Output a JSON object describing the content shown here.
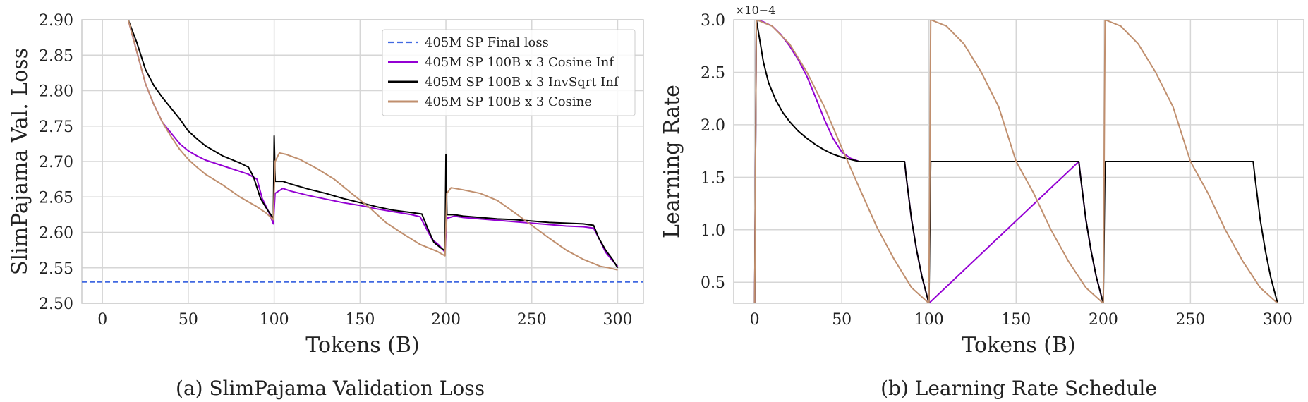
{
  "chart_data": [
    {
      "type": "line",
      "caption": "(a) SlimPajama Validation Loss",
      "xlabel": "Tokens (B)",
      "ylabel": "SlimPajama Val. Loss",
      "xlim": [
        -12,
        315
      ],
      "ylim": [
        2.5,
        2.9
      ],
      "xticks": [
        0,
        50,
        100,
        150,
        200,
        250,
        300
      ],
      "yticks": [
        2.5,
        2.55,
        2.6,
        2.65,
        2.7,
        2.75,
        2.8,
        2.85,
        2.9
      ],
      "grid": true,
      "legend_position": "top-right",
      "reference_lines": [
        {
          "name": "405M SP  Final loss",
          "y": 2.53,
          "style": "dashed",
          "color": "#4169e1"
        }
      ],
      "series": [
        {
          "name": "405M SP 100B x 3 Cosine Inf",
          "color": "#9400d3",
          "points": [
            [
              15,
              2.9
            ],
            [
              20,
              2.855
            ],
            [
              25,
              2.81
            ],
            [
              30,
              2.78
            ],
            [
              35,
              2.755
            ],
            [
              40,
              2.74
            ],
            [
              45,
              2.725
            ],
            [
              50,
              2.715
            ],
            [
              55,
              2.708
            ],
            [
              60,
              2.702
            ],
            [
              70,
              2.694
            ],
            [
              80,
              2.686
            ],
            [
              85,
              2.682
            ],
            [
              90,
              2.675
            ],
            [
              93,
              2.648
            ],
            [
              97,
              2.628
            ],
            [
              99.5,
              2.612
            ],
            [
              100.5,
              2.655
            ],
            [
              105,
              2.662
            ],
            [
              110,
              2.658
            ],
            [
              120,
              2.652
            ],
            [
              130,
              2.647
            ],
            [
              140,
              2.642
            ],
            [
              150,
              2.638
            ],
            [
              160,
              2.633
            ],
            [
              170,
              2.629
            ],
            [
              180,
              2.625
            ],
            [
              185,
              2.622
            ],
            [
              188,
              2.608
            ],
            [
              192,
              2.59
            ],
            [
              196,
              2.582
            ],
            [
              199.5,
              2.572
            ],
            [
              200.5,
              2.62
            ],
            [
              205,
              2.623
            ],
            [
              210,
              2.621
            ],
            [
              220,
              2.619
            ],
            [
              230,
              2.617
            ],
            [
              240,
              2.615
            ],
            [
              250,
              2.613
            ],
            [
              260,
              2.611
            ],
            [
              270,
              2.609
            ],
            [
              280,
              2.608
            ],
            [
              286,
              2.606
            ],
            [
              289,
              2.592
            ],
            [
              293,
              2.572
            ],
            [
              297,
              2.56
            ],
            [
              300,
              2.552
            ]
          ]
        },
        {
          "name": "405M SP 100B x 3 InvSqrt Inf",
          "color": "#000000",
          "points": [
            [
              15,
              2.9
            ],
            [
              20,
              2.868
            ],
            [
              25,
              2.83
            ],
            [
              30,
              2.807
            ],
            [
              35,
              2.79
            ],
            [
              40,
              2.775
            ],
            [
              45,
              2.76
            ],
            [
              50,
              2.743
            ],
            [
              55,
              2.732
            ],
            [
              60,
              2.722
            ],
            [
              65,
              2.715
            ],
            [
              70,
              2.708
            ],
            [
              80,
              2.698
            ],
            [
              85,
              2.692
            ],
            [
              88,
              2.678
            ],
            [
              92,
              2.648
            ],
            [
              96,
              2.632
            ],
            [
              99.5,
              2.62
            ],
            [
              100,
              2.736
            ],
            [
              100.6,
              2.672
            ],
            [
              105,
              2.672
            ],
            [
              110,
              2.668
            ],
            [
              120,
              2.661
            ],
            [
              130,
              2.655
            ],
            [
              140,
              2.648
            ],
            [
              150,
              2.642
            ],
            [
              160,
              2.636
            ],
            [
              170,
              2.631
            ],
            [
              180,
              2.628
            ],
            [
              186,
              2.626
            ],
            [
              189,
              2.608
            ],
            [
              193,
              2.586
            ],
            [
              197,
              2.578
            ],
            [
              199.5,
              2.574
            ],
            [
              200,
              2.71
            ],
            [
              200.6,
              2.625
            ],
            [
              205,
              2.625
            ],
            [
              210,
              2.623
            ],
            [
              220,
              2.621
            ],
            [
              230,
              2.619
            ],
            [
              240,
              2.618
            ],
            [
              250,
              2.616
            ],
            [
              260,
              2.614
            ],
            [
              270,
              2.613
            ],
            [
              280,
              2.612
            ],
            [
              286,
              2.61
            ],
            [
              289,
              2.592
            ],
            [
              293,
              2.575
            ],
            [
              297,
              2.562
            ],
            [
              300,
              2.55
            ]
          ]
        },
        {
          "name": "405M SP 100B x 3 Cosine",
          "color": "#c08f6e",
          "points": [
            [
              15,
              2.9
            ],
            [
              20,
              2.855
            ],
            [
              25,
              2.81
            ],
            [
              30,
              2.78
            ],
            [
              35,
              2.755
            ],
            [
              40,
              2.735
            ],
            [
              45,
              2.717
            ],
            [
              50,
              2.703
            ],
            [
              55,
              2.692
            ],
            [
              60,
              2.682
            ],
            [
              70,
              2.667
            ],
            [
              80,
              2.65
            ],
            [
              90,
              2.636
            ],
            [
              95,
              2.628
            ],
            [
              99.5,
              2.618
            ],
            [
              100.5,
              2.7
            ],
            [
              103,
              2.712
            ],
            [
              107,
              2.71
            ],
            [
              115,
              2.703
            ],
            [
              125,
              2.69
            ],
            [
              135,
              2.675
            ],
            [
              145,
              2.655
            ],
            [
              155,
              2.636
            ],
            [
              165,
              2.614
            ],
            [
              175,
              2.598
            ],
            [
              185,
              2.583
            ],
            [
              195,
              2.573
            ],
            [
              199.5,
              2.567
            ],
            [
              200.5,
              2.655
            ],
            [
              203,
              2.663
            ],
            [
              210,
              2.66
            ],
            [
              220,
              2.655
            ],
            [
              230,
              2.645
            ],
            [
              240,
              2.628
            ],
            [
              250,
              2.61
            ],
            [
              260,
              2.592
            ],
            [
              270,
              2.575
            ],
            [
              280,
              2.562
            ],
            [
              290,
              2.552
            ],
            [
              295,
              2.55
            ],
            [
              300,
              2.547
            ]
          ]
        }
      ]
    },
    {
      "type": "line",
      "caption": "(b) Learning Rate Schedule",
      "xlabel": "Tokens (B)",
      "ylabel": "Learning Rate",
      "scale_note": "×10−4",
      "xlim": [
        -12,
        315
      ],
      "ylim": [
        0.3,
        3.0
      ],
      "xticks": [
        0,
        50,
        100,
        150,
        200,
        250,
        300
      ],
      "yticks": [
        0.5,
        1.0,
        1.5,
        2.0,
        2.5,
        3.0
      ],
      "grid": true,
      "series": [
        {
          "name": "405M SP 100B x 3 Cosine Inf",
          "color": "#9400d3",
          "points": [
            [
              0,
              0.3
            ],
            [
              1,
              3.0
            ],
            [
              5,
              2.98
            ],
            [
              10,
              2.94
            ],
            [
              15,
              2.86
            ],
            [
              20,
              2.75
            ],
            [
              25,
              2.62
            ],
            [
              30,
              2.46
            ],
            [
              35,
              2.26
            ],
            [
              40,
              2.05
            ],
            [
              45,
              1.87
            ],
            [
              50,
              1.74
            ],
            [
              55,
              1.68
            ],
            [
              60,
              1.65
            ],
            [
              86,
              1.65
            ],
            [
              87,
              1.5
            ],
            [
              90,
              1.1
            ],
            [
              93,
              0.8
            ],
            [
              96,
              0.55
            ],
            [
              100,
              0.3
            ],
            [
              186,
              1.65
            ],
            [
              187,
              1.5
            ],
            [
              190,
              1.1
            ],
            [
              193,
              0.8
            ],
            [
              196,
              0.55
            ],
            [
              200,
              0.3
            ]
          ]
        },
        {
          "name": "405M SP 100B x 3 InvSqrt Inf",
          "color": "#000000",
          "points": [
            [
              0,
              0.3
            ],
            [
              1,
              3.0
            ],
            [
              3,
              2.8
            ],
            [
              5,
              2.6
            ],
            [
              8,
              2.4
            ],
            [
              12,
              2.24
            ],
            [
              16,
              2.12
            ],
            [
              20,
              2.03
            ],
            [
              25,
              1.94
            ],
            [
              30,
              1.87
            ],
            [
              35,
              1.81
            ],
            [
              40,
              1.76
            ],
            [
              45,
              1.72
            ],
            [
              50,
              1.69
            ],
            [
              55,
              1.67
            ],
            [
              60,
              1.65
            ],
            [
              86,
              1.65
            ],
            [
              87,
              1.5
            ],
            [
              90,
              1.1
            ],
            [
              93,
              0.8
            ],
            [
              96,
              0.55
            ],
            [
              100,
              0.3
            ],
            [
              101,
              1.65
            ],
            [
              186,
              1.65
            ],
            [
              187,
              1.5
            ],
            [
              190,
              1.1
            ],
            [
              193,
              0.8
            ],
            [
              196,
              0.55
            ],
            [
              200,
              0.3
            ],
            [
              201,
              1.65
            ],
            [
              286,
              1.65
            ],
            [
              287,
              1.5
            ],
            [
              290,
              1.1
            ],
            [
              293,
              0.8
            ],
            [
              296,
              0.55
            ],
            [
              300,
              0.3
            ]
          ]
        },
        {
          "name": "405M SP 100B x 3 Cosine",
          "color": "#c08f6e",
          "points": [
            [
              0,
              0.3
            ],
            [
              1,
              3.0
            ],
            [
              10,
              2.94
            ],
            [
              20,
              2.77
            ],
            [
              30,
              2.5
            ],
            [
              40,
              2.17
            ],
            [
              50,
              1.78
            ],
            [
              60,
              1.4
            ],
            [
              70,
              1.03
            ],
            [
              80,
              0.72
            ],
            [
              90,
              0.45
            ],
            [
              100,
              0.3
            ],
            [
              101,
              3.0
            ],
            [
              110,
              2.94
            ],
            [
              120,
              2.77
            ],
            [
              130,
              2.5
            ],
            [
              140,
              2.17
            ],
            [
              150,
              1.65
            ],
            [
              160,
              1.35
            ],
            [
              170,
              1.0
            ],
            [
              180,
              0.7
            ],
            [
              190,
              0.45
            ],
            [
              200,
              0.3
            ],
            [
              201,
              3.0
            ],
            [
              210,
              2.94
            ],
            [
              220,
              2.77
            ],
            [
              230,
              2.5
            ],
            [
              240,
              2.17
            ],
            [
              250,
              1.65
            ],
            [
              260,
              1.35
            ],
            [
              270,
              1.0
            ],
            [
              280,
              0.7
            ],
            [
              290,
              0.45
            ],
            [
              300,
              0.3
            ]
          ]
        }
      ]
    }
  ]
}
